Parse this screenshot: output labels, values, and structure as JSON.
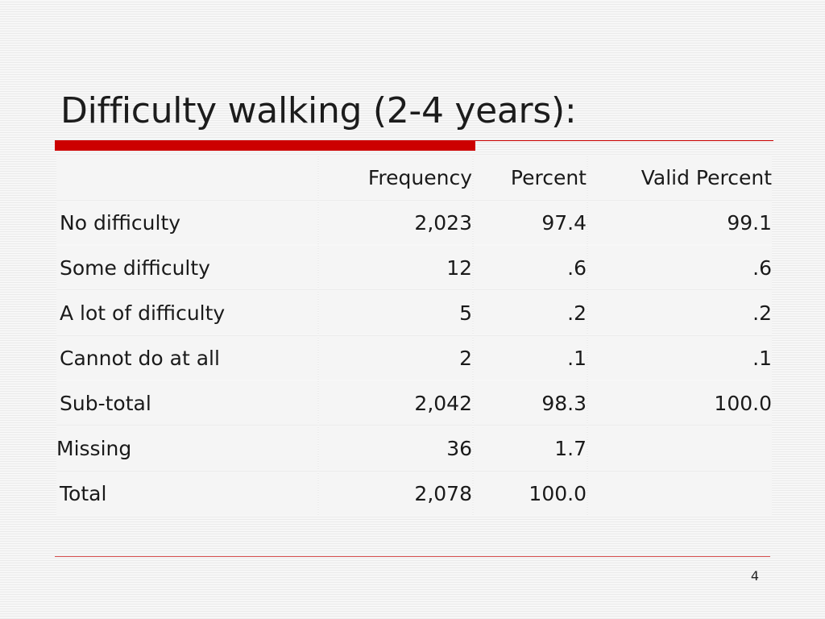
{
  "slide": {
    "title": "Difficulty walking (2-4 years):",
    "page_number": "4"
  },
  "table": {
    "columns": [
      "",
      "Frequency",
      "Percent",
      "Valid Percent"
    ],
    "rows": [
      {
        "label": "No difficulty",
        "frequency": "2,023",
        "percent": "97.4",
        "valid_percent": "99.1"
      },
      {
        "label": "Some difficulty",
        "frequency": "12",
        "percent": ".6",
        "valid_percent": ".6"
      },
      {
        "label": "A lot of difficulty",
        "frequency": "5",
        "percent": ".2",
        "valid_percent": ".2"
      },
      {
        "label": "Cannot do at all",
        "frequency": "2",
        "percent": ".1",
        "valid_percent": ".1"
      },
      {
        "label": "Sub-total",
        "frequency": "2,042",
        "percent": "98.3",
        "valid_percent": "100.0"
      },
      {
        "label": "Missing",
        "frequency": "36",
        "percent": "1.7",
        "valid_percent": ""
      },
      {
        "label": "Total",
        "frequency": "2,078",
        "percent": "100.0",
        "valid_percent": ""
      }
    ]
  },
  "colors": {
    "accent_rule": "#cc0000",
    "cell_background": "#f5f5f5"
  }
}
